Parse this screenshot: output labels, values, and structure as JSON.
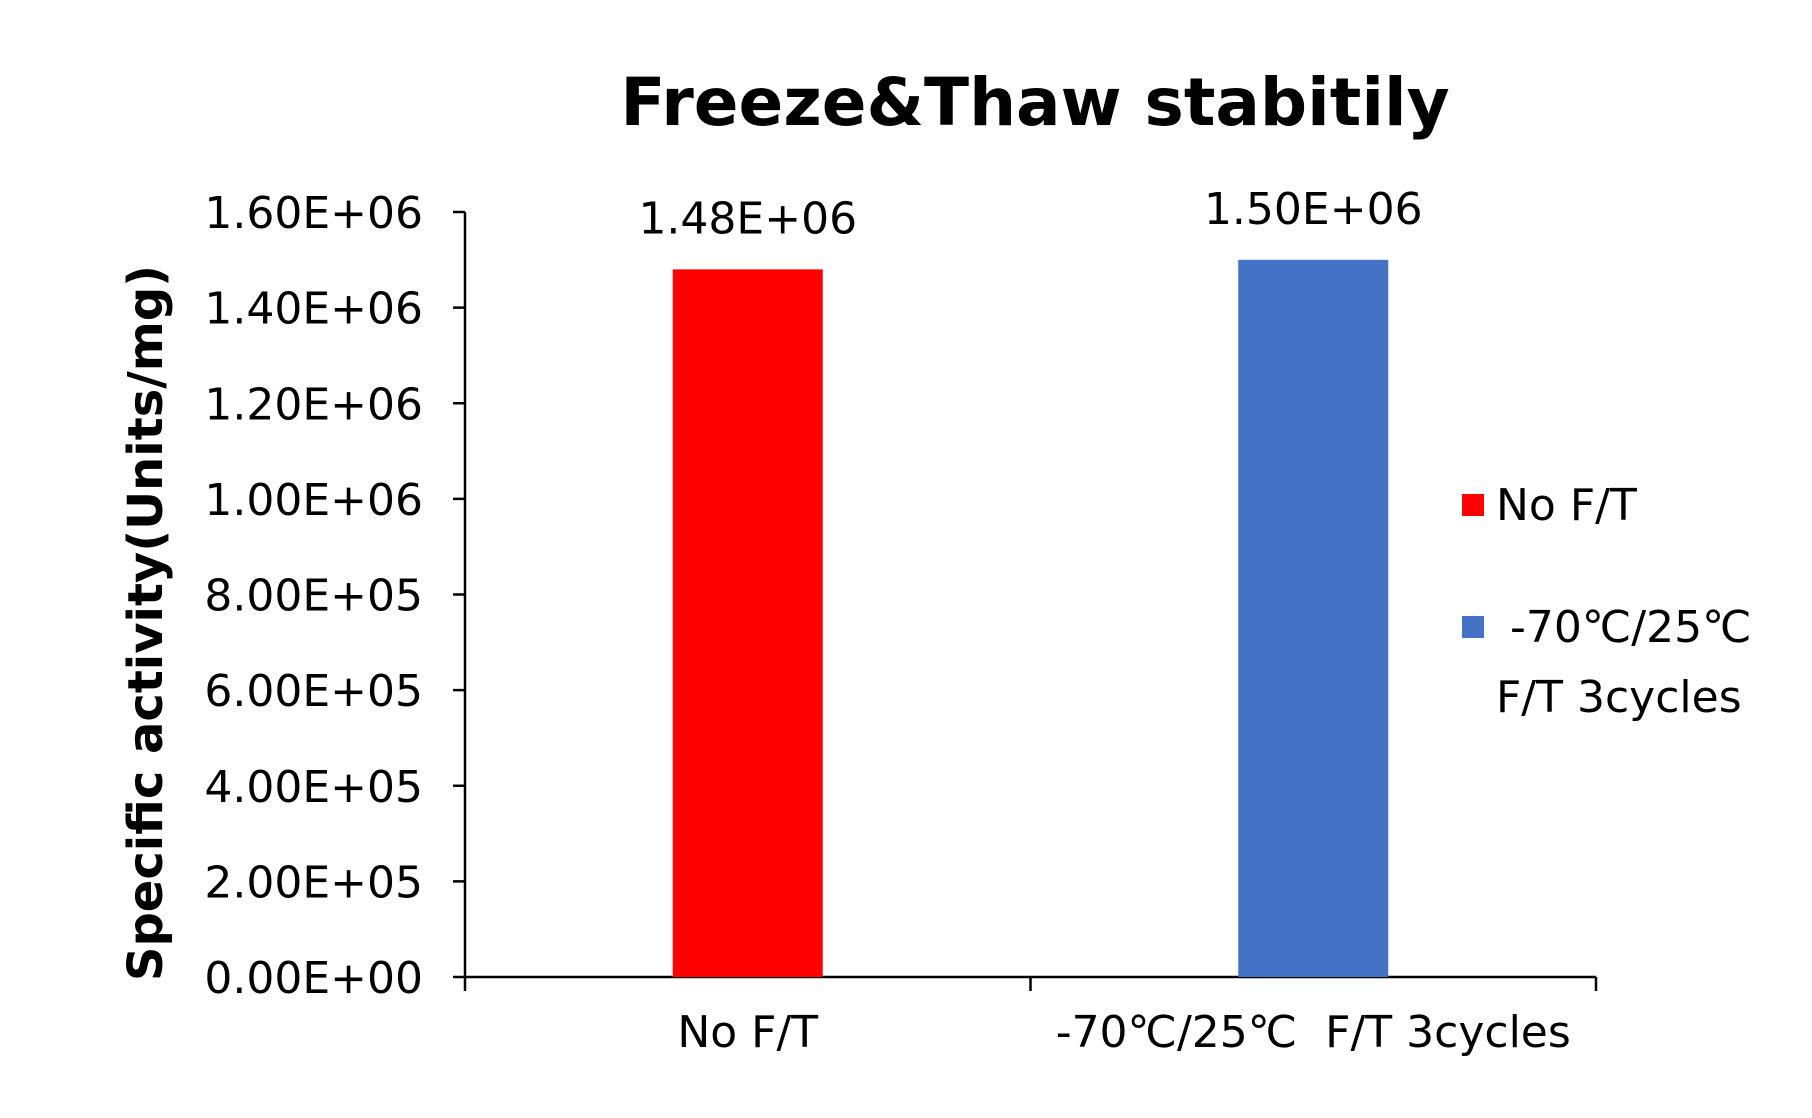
{
  "chart_data": {
    "type": "bar",
    "title": "Freeze&Thaw stabitily",
    "xlabel": "",
    "ylabel": "Specific activity(Units/mg)",
    "ylim": [
      0,
      1600000
    ],
    "yticks": [
      0,
      200000,
      400000,
      600000,
      800000,
      1000000,
      1200000,
      1400000,
      1600000
    ],
    "ytick_labels": [
      "0.00E+00",
      "2.00E+05",
      "4.00E+05",
      "6.00E+05",
      "8.00E+05",
      "1.00E+06",
      "1.20E+06",
      "1.40E+06",
      "1.60E+06"
    ],
    "categories": [
      "No F/T",
      "-70℃/25℃  F/T 3cycles"
    ],
    "values": [
      1480000,
      1500000
    ],
    "data_labels": [
      "1.48E+06",
      "1.50E+06"
    ],
    "colors": [
      "#ff0000",
      "#4472c4"
    ],
    "grid": false,
    "legend": {
      "position": "right",
      "entries": [
        {
          "lines": [
            "No F/T"
          ],
          "color": "#ff0000"
        },
        {
          "lines": [
            " -70℃/25℃",
            "F/T 3cycles"
          ],
          "color": "#4472c4"
        }
      ]
    }
  }
}
